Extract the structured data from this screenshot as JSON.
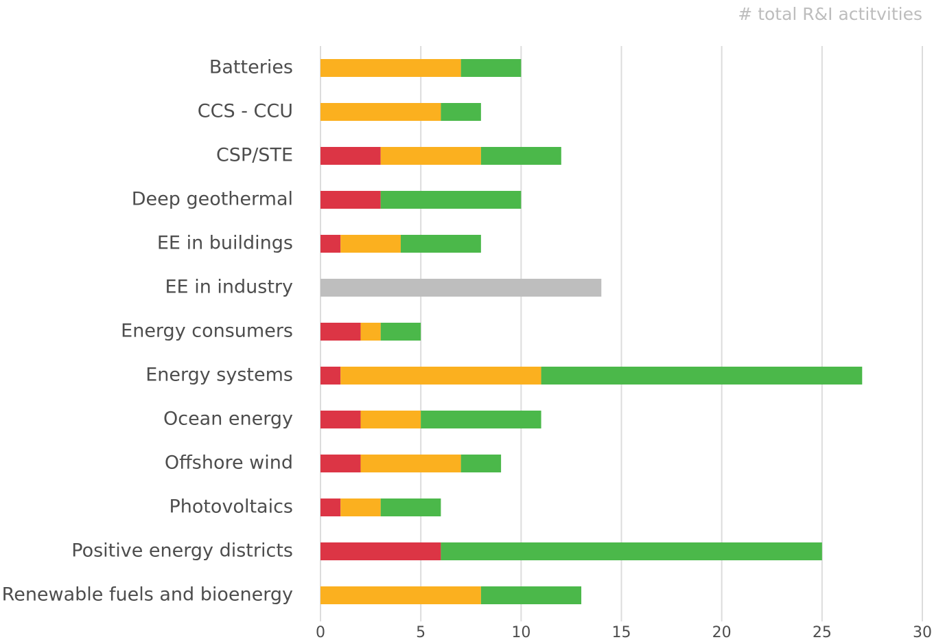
{
  "chart_data": {
    "type": "stacked_bar_horizontal",
    "x_label": "# total R&I actitvities",
    "categories": [
      "Batteries",
      "CCS - CCU",
      "CSP/STE",
      "Deep geothermal",
      "EE in buildings",
      "EE in industry",
      "Energy consumers",
      "Energy systems",
      "Ocean energy",
      "Offshore wind",
      "Photovoltaics",
      "Positive energy districts",
      "Renewable fuels and bioenergy"
    ],
    "series": [
      {
        "color": "#dc3545",
        "values": [
          0,
          0,
          3,
          3,
          1,
          0,
          2,
          1,
          2,
          2,
          1,
          6,
          0
        ]
      },
      {
        "color": "#fbb01f",
        "values": [
          7,
          6,
          5,
          0,
          3,
          0,
          1,
          10,
          3,
          5,
          2,
          0,
          8
        ]
      },
      {
        "color": "#4bb84a",
        "values": [
          3,
          2,
          4,
          7,
          4,
          0,
          2,
          16,
          6,
          2,
          3,
          19,
          5
        ]
      },
      {
        "color": "#bebebe",
        "values": [
          0,
          0,
          0,
          0,
          0,
          14,
          0,
          0,
          0,
          0,
          0,
          0,
          0
        ]
      }
    ],
    "xlim": [
      0,
      30
    ],
    "xticks": [
      0,
      5,
      10,
      15,
      20,
      25,
      30
    ],
    "grid": true
  }
}
